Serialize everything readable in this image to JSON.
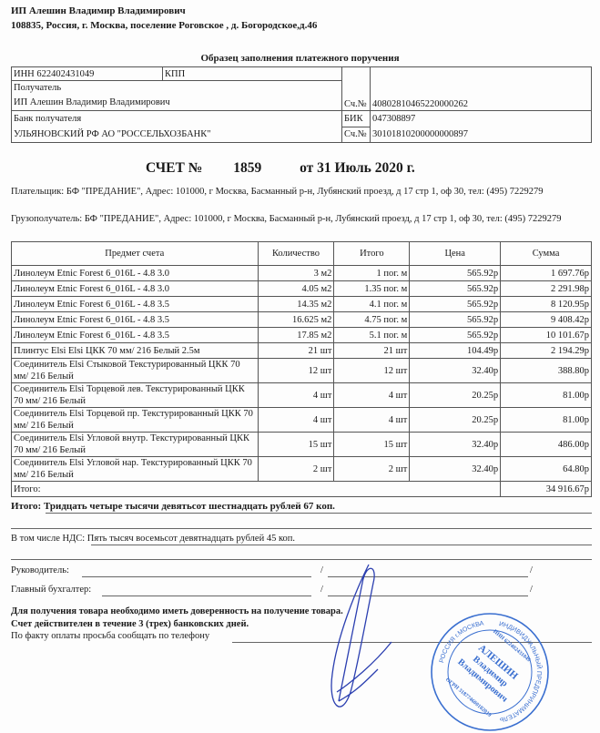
{
  "supplier": {
    "name": "ИП Алешин Владимир Владимирович",
    "address": "108835, Россия, г. Москва, поселение Роговское , д. Богородское,д.46"
  },
  "payment_form": {
    "title": "Образец заполнения платежного поручения",
    "inn": "ИНН 622402431049",
    "kpp": "КПП",
    "recipient_label": "Получатель",
    "recipient": "ИП Алешин Владимир Владимирович",
    "account_label": "Сч.№",
    "account": "40802810465220000262",
    "bank_label": "Банк получателя",
    "bank": "УЛЬЯНОВСКИЙ РФ АО \"РОССЕЛЬХОЗБАНК\"",
    "bik_label": "БИК",
    "bik": "047308897",
    "corr_label": "Сч.№",
    "corr_account": "30101810200000000897"
  },
  "invoice": {
    "label": "СЧЕТ №",
    "number": "1859",
    "date": "от  31 Июль 2020 г."
  },
  "payer": "Плательщик: БФ \"ПРЕДАНИЕ\", Адрес: 101000, г Москва, Басманный р-н, Лубянский проезд, д 17 стр 1, оф 30, тел: (495) 7229279",
  "consignee": "Грузополучатель: БФ \"ПРЕДАНИЕ\", Адрес: 101000, г Москва, Басманный р-н, Лубянский проезд, д 17 стр 1, оф 30, тел: (495) 7229279",
  "items_table": {
    "headers": [
      "Предмет счета",
      "Количество",
      "Итого",
      "Цена",
      "Сумма"
    ],
    "rows": [
      [
        "Линолеум Etnic Forest 6_016L - 4.8 3.0",
        "3 м2",
        "1 пог. м",
        "565.92р",
        "1 697.76р"
      ],
      [
        "Линолеум Etnic Forest 6_016L - 4.8 3.0",
        "4.05 м2",
        "1.35 пог. м",
        "565.92р",
        "2 291.98р"
      ],
      [
        "Линолеум Etnic Forest 6_016L - 4.8 3.5",
        "14.35 м2",
        "4.1 пог. м",
        "565.92р",
        "8 120.95р"
      ],
      [
        "Линолеум Etnic Forest 6_016L - 4.8 3.5",
        "16.625 м2",
        "4.75 пог. м",
        "565.92р",
        "9 408.42р"
      ],
      [
        "Линолеум Etnic Forest 6_016L - 4.8 3.5",
        "17.85 м2",
        "5.1 пог. м",
        "565.92р",
        "10 101.67р"
      ],
      [
        "Плинтус Elsi Elsi ЦКК 70 мм/ 216 Белый 2.5м",
        "21 шт",
        "21 шт",
        "104.49р",
        "2 194.29р"
      ],
      [
        "Соединитель Elsi Стыковой Текстурированный ЦКК 70 мм/ 216 Белый",
        "12 шт",
        "12 шт",
        "32.40р",
        "388.80р"
      ],
      [
        "Соединитель Elsi Торцевой лев. Текстурированный ЦКК 70 мм/ 216 Белый",
        "4 шт",
        "4 шт",
        "20.25р",
        "81.00р"
      ],
      [
        "Соединитель Elsi Торцевой пр. Текстурированный ЦКК 70 мм/ 216 Белый",
        "4 шт",
        "4 шт",
        "20.25р",
        "81.00р"
      ],
      [
        "Соединитель Elsi Угловой внутр. Текстурированный ЦКК 70 мм/ 216 Белый",
        "15 шт",
        "15 шт",
        "32.40р",
        "486.00р"
      ],
      [
        "Соединитель Elsi Угловой нар. Текстурированный ЦКК 70 мм/ 216 Белый",
        "2 шт",
        "2 шт",
        "32.40р",
        "64.80р"
      ]
    ],
    "total_label": "Итого:",
    "total": "34 916.67р"
  },
  "total_words": {
    "label": "Итого:",
    "text": "Тридцать четыре тысячи девятьсот шестнадцать рублей 67 коп."
  },
  "vat": {
    "label": "В том числе НДС:",
    "text": "Пять тысяч восемьсот девятнадцать рублей 45 коп."
  },
  "signatures": {
    "director": "Руководитель:",
    "accountant": "Главный бухгалтер:",
    "slash": "/"
  },
  "notes": [
    "Для получения товара необходимо иметь доверенность на получение товара.",
    "Счет действителен в течение 3 (трех) банковских дней.",
    "По факту оплаты просьба сообщать по телефону"
  ],
  "stamp": {
    "outer_top": "ИНДИВИДУАЛЬНЫЙ ПРЕДПРИНИМАТЕЛЬ",
    "inn": "ИНН 622402431049",
    "ogrn": "ОГРН 318774600182019",
    "city": "РОССИЯ г.МОСКВА",
    "name": [
      "АЛЕШИН",
      "Владимир",
      "Владимирович"
    ]
  },
  "colors": {
    "ink": "#1a1a1a",
    "stamp": "#3a6fd0",
    "signature": "#2b3fb0"
  }
}
